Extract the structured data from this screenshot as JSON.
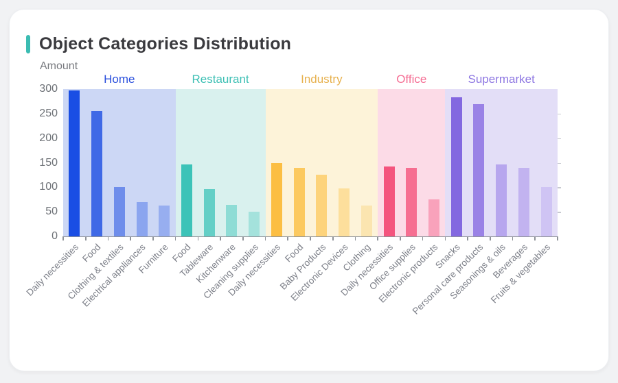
{
  "card": {
    "title": "Object Categories Distribution",
    "accent_color": "#3bbcb2"
  },
  "chart_data": {
    "type": "bar",
    "title": "Object Categories Distribution",
    "xlabel": "",
    "ylabel": "Amount",
    "ylim": [
      0,
      300
    ],
    "yticks": [
      0,
      50,
      100,
      150,
      200,
      250,
      300
    ],
    "grid": false,
    "legend_position": "none",
    "axis_color": "#8f9399",
    "tick_label_color": "#6e7277",
    "x_label_color": "#7c7f88",
    "groups": [
      {
        "name": "Home",
        "label_color": "#2b50dd",
        "band_color": "#ccd7f5",
        "categories": [
          "Daily necessities",
          "Food",
          "Clothing & textiles",
          "Electrical appliances",
          "Furniture"
        ],
        "values": [
          297,
          256,
          100,
          70,
          63
        ],
        "bar_colors": [
          "#1a4ee4",
          "#3f69e6",
          "#6e8deb",
          "#8ba5ef",
          "#97aef0"
        ]
      },
      {
        "name": "Restaurant",
        "label_color": "#3ec0b5",
        "band_color": "#d9f1ee",
        "categories": [
          "Food",
          "Tableware",
          "Kitchenware",
          "Cleaning supplies"
        ],
        "values": [
          147,
          96,
          64,
          50
        ],
        "bar_colors": [
          "#3cc3b8",
          "#63cfc6",
          "#8edcd5",
          "#a4e2dc"
        ]
      },
      {
        "name": "Industry",
        "label_color": "#e7b14e",
        "band_color": "#fdf3d9",
        "categories": [
          "Daily necessities",
          "Food",
          "Baby Products",
          "Electronic Devices",
          "Clothing"
        ],
        "values": [
          150,
          139,
          125,
          98,
          63
        ],
        "bar_colors": [
          "#fcbe42",
          "#fcc95f",
          "#fdd37b",
          "#fddf9c",
          "#fbe5b0"
        ]
      },
      {
        "name": "Office",
        "label_color": "#f56d93",
        "band_color": "#fcdbe7",
        "categories": [
          "Daily necessities",
          "Office supplies",
          "Electronic products"
        ],
        "values": [
          142,
          139,
          75
        ],
        "bar_colors": [
          "#f4547e",
          "#f66e91",
          "#f9a2bb"
        ]
      },
      {
        "name": "Supermarket",
        "label_color": "#8d76e2",
        "band_color": "#e3def7",
        "categories": [
          "Snacks",
          "Personal care products",
          "Seasonings & oils",
          "Beverages",
          "Fruits & vegetables"
        ],
        "values": [
          283,
          270,
          147,
          140,
          100
        ],
        "bar_colors": [
          "#8368e0",
          "#9a82e6",
          "#b7a6ee",
          "#c2b3f0",
          "#cfc4f4"
        ]
      }
    ]
  }
}
